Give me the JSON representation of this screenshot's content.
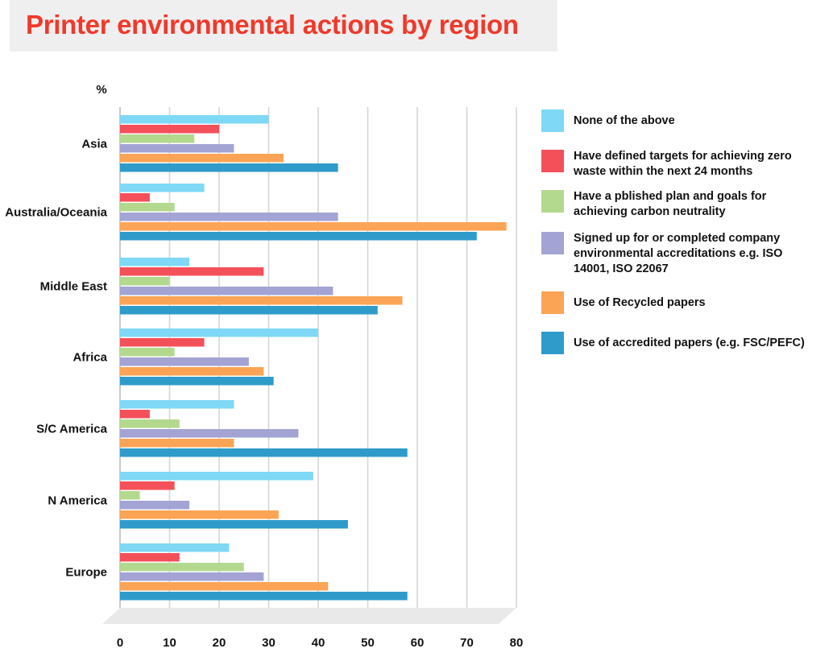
{
  "title": "Printer environmental actions by region",
  "unit_label": "%",
  "colors": {
    "title": "#f0392b",
    "none": "#7fd8f5",
    "zero_waste": "#f4505a",
    "carbon": "#b3d98f",
    "accreditations": "#a3a3d4",
    "recycled": "#fca455",
    "accredited_papers": "#2f9bcb"
  },
  "chart_data": {
    "type": "bar",
    "orientation": "horizontal",
    "title": "Printer environmental actions by region",
    "ylabel": "%",
    "xlim": [
      0,
      80
    ],
    "x_ticks": [
      "0",
      "10",
      "20",
      "30",
      "40",
      "50",
      "60",
      "70",
      "80"
    ],
    "grid": true,
    "legend_position": "right",
    "categories": [
      "Asia",
      "Australia/Oceania",
      "Middle East",
      "Africa",
      "S/C America",
      "N America",
      "Europe"
    ],
    "series": [
      {
        "name": "None of the above",
        "color": "#7fd8f5",
        "values": [
          30,
          17,
          14,
          40,
          23,
          39,
          22
        ]
      },
      {
        "name": "Have defined targets for achieving zero waste within the next 24 months",
        "color": "#f4505a",
        "values": [
          20,
          6,
          29,
          17,
          6,
          11,
          12
        ]
      },
      {
        "name": "Have a pblished plan and goals for achieving carbon neutrality",
        "color": "#b3d98f",
        "values": [
          15,
          11,
          10,
          11,
          12,
          4,
          25
        ]
      },
      {
        "name": "Signed up for or completed company environmental accreditations e.g. ISO 14001, ISO 22067",
        "color": "#a3a3d4",
        "values": [
          23,
          44,
          43,
          26,
          36,
          14,
          29
        ]
      },
      {
        "name": "Use of Recycled papers",
        "color": "#fca455",
        "values": [
          33,
          78,
          57,
          29,
          23,
          32,
          42
        ]
      },
      {
        "name": "Use of accredited papers (e.g. FSC/PEFC)",
        "color": "#2f9bcb",
        "values": [
          44,
          72,
          52,
          31,
          58,
          46,
          58
        ]
      }
    ]
  }
}
